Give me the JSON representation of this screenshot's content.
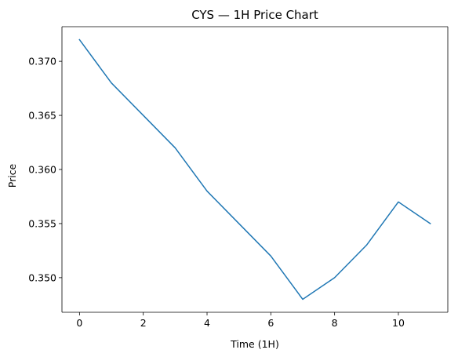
{
  "chart_data": {
    "type": "line",
    "title": "CYS — 1H Price Chart",
    "xlabel": "Time (1H)",
    "ylabel": "Price",
    "x": [
      0,
      1,
      2,
      3,
      4,
      5,
      6,
      7,
      8,
      9,
      10,
      11
    ],
    "series": [
      {
        "values": [
          0.372,
          0.368,
          0.365,
          0.362,
          0.358,
          0.355,
          0.352,
          0.348,
          0.35,
          0.353,
          0.357,
          0.355
        ],
        "color": "#1f77b4"
      }
    ],
    "xlim": [
      -0.55,
      11.55
    ],
    "ylim": [
      0.3468,
      0.3732
    ],
    "xticks": [
      0,
      2,
      4,
      6,
      8,
      10
    ],
    "xtick_labels": [
      "0",
      "2",
      "4",
      "6",
      "8",
      "10"
    ],
    "yticks": [
      0.35,
      0.355,
      0.36,
      0.365,
      0.37
    ],
    "ytick_labels": [
      "0.350",
      "0.355",
      "0.360",
      "0.365",
      "0.370"
    ],
    "grid": false,
    "legend": "none"
  }
}
